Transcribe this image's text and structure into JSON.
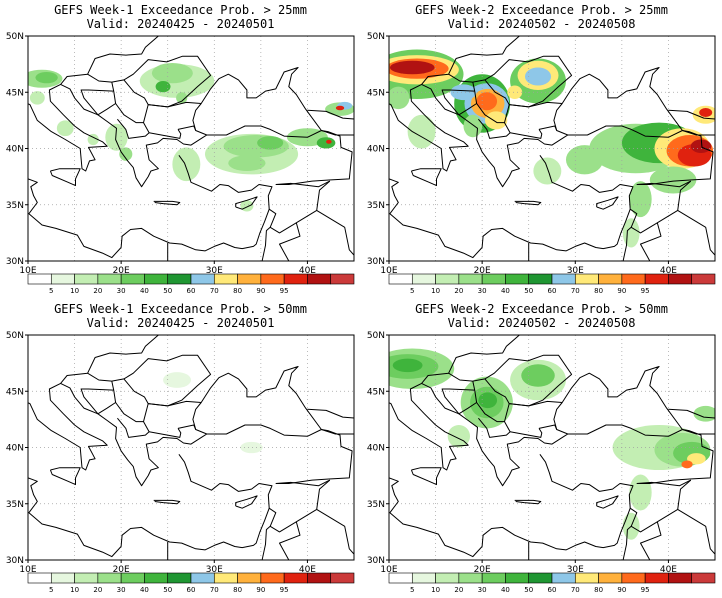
{
  "colors": {
    "scale": [
      "#ffffff",
      "#e6f7df",
      "#c3eeb3",
      "#9be08a",
      "#6dcd5f",
      "#3fb43c",
      "#1f9632",
      "#8ec7e8",
      "#ffe979",
      "#ffb13c",
      "#ff6a1c",
      "#e0220f",
      "#b11212",
      "#cb3a3a"
    ],
    "land_line": "#000000",
    "grid_line": "#a0a0a0"
  },
  "colorbar": {
    "labels": [
      "5",
      "10",
      "20",
      "30",
      "40",
      "50",
      "60",
      "70",
      "80",
      "90",
      "95"
    ]
  },
  "axes": {
    "lon_labels": [
      "10E",
      "20E",
      "30E",
      "40E"
    ],
    "lat_labels": [
      "50N",
      "45N",
      "40N",
      "35N",
      "30N"
    ]
  },
  "panels": [
    {
      "title": "GEFS Week-1 Exceedance Prob. > 25mm",
      "valid": "Valid: 20240425 - 20240501",
      "intensity": "w1_25"
    },
    {
      "title": "GEFS Week-2 Exceedance Prob. > 25mm",
      "valid": "Valid: 20240502 - 20240508",
      "intensity": "w2_25"
    },
    {
      "title": "GEFS Week-1 Exceedance Prob. > 50mm",
      "valid": "Valid: 20240425 - 20240501",
      "intensity": "w1_50"
    },
    {
      "title": "GEFS Week-2 Exceedance Prob. > 50mm",
      "valid": "Valid: 20240502 - 20240508",
      "intensity": "w2_50"
    }
  ]
}
